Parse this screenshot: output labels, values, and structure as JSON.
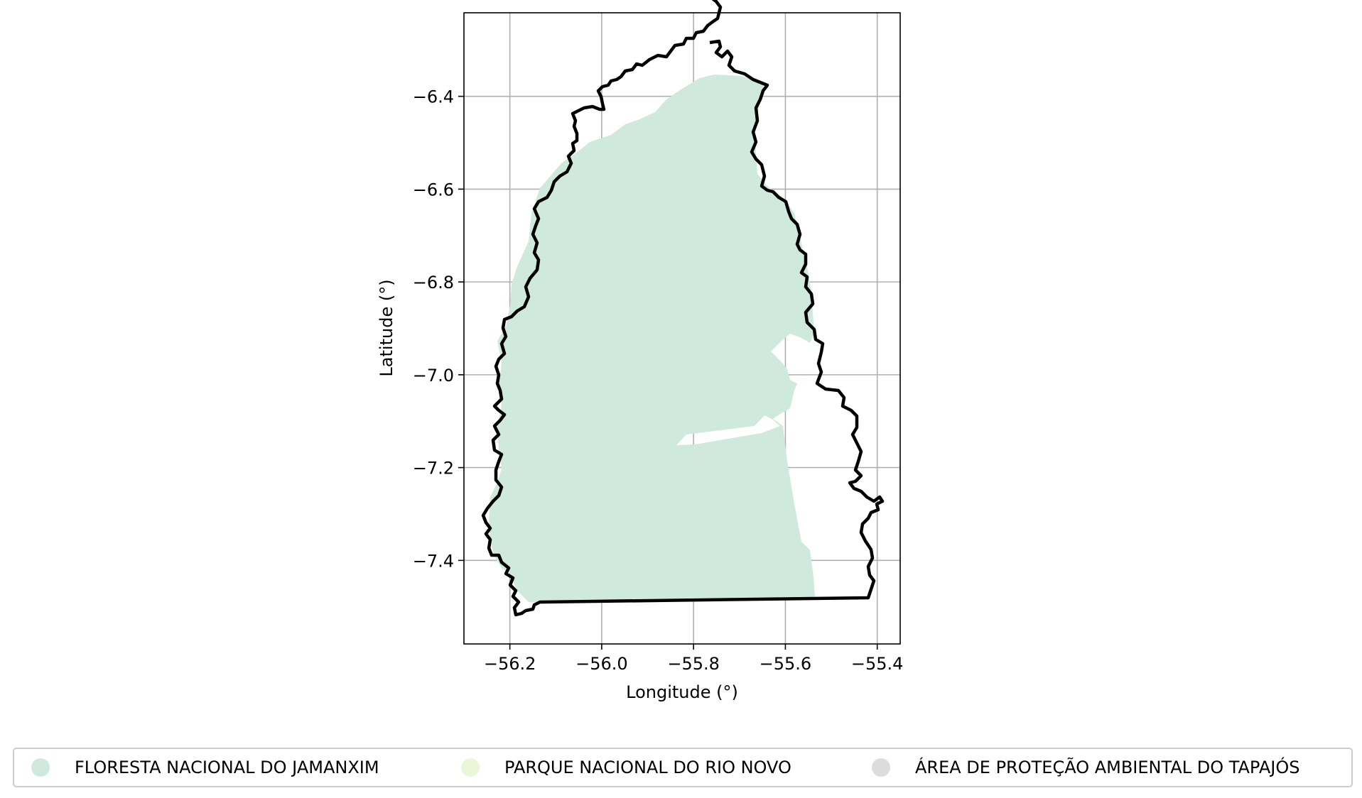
{
  "chart_data": {
    "type": "map",
    "xlabel": "Longitude (°)",
    "ylabel": "Latitude (°)",
    "xlim": [
      -56.3,
      -55.35
    ],
    "ylim": [
      -7.58,
      -6.22
    ],
    "xticks": [
      -56.2,
      -56.0,
      -55.8,
      -55.6,
      -55.4
    ],
    "yticks": [
      -6.4,
      -6.6,
      -6.8,
      -7.0,
      -7.2,
      -7.4
    ],
    "xtick_labels": [
      "−56.2",
      "−56.0",
      "−55.8",
      "−55.6",
      "−55.4"
    ],
    "ytick_labels": [
      "−6.4",
      "−6.6",
      "−6.8",
      "−7.0",
      "−7.2",
      "−7.4"
    ],
    "grid": true,
    "legend_position": "bottom",
    "legend": [
      {
        "name": "FLORESTA NACIONAL DO JAMANXIM",
        "color": "#cfeadc"
      },
      {
        "name": "PARQUE NACIONAL DO RIO NOVO",
        "color": "#e9f6d7"
      },
      {
        "name": "ÁREA DE PROTEÇÃO AMBIENTAL DO TAPAJÓS",
        "color": "#dcdcdc"
      }
    ],
    "boundary_color": "#000000",
    "grid_color": "#b0b0b0"
  }
}
